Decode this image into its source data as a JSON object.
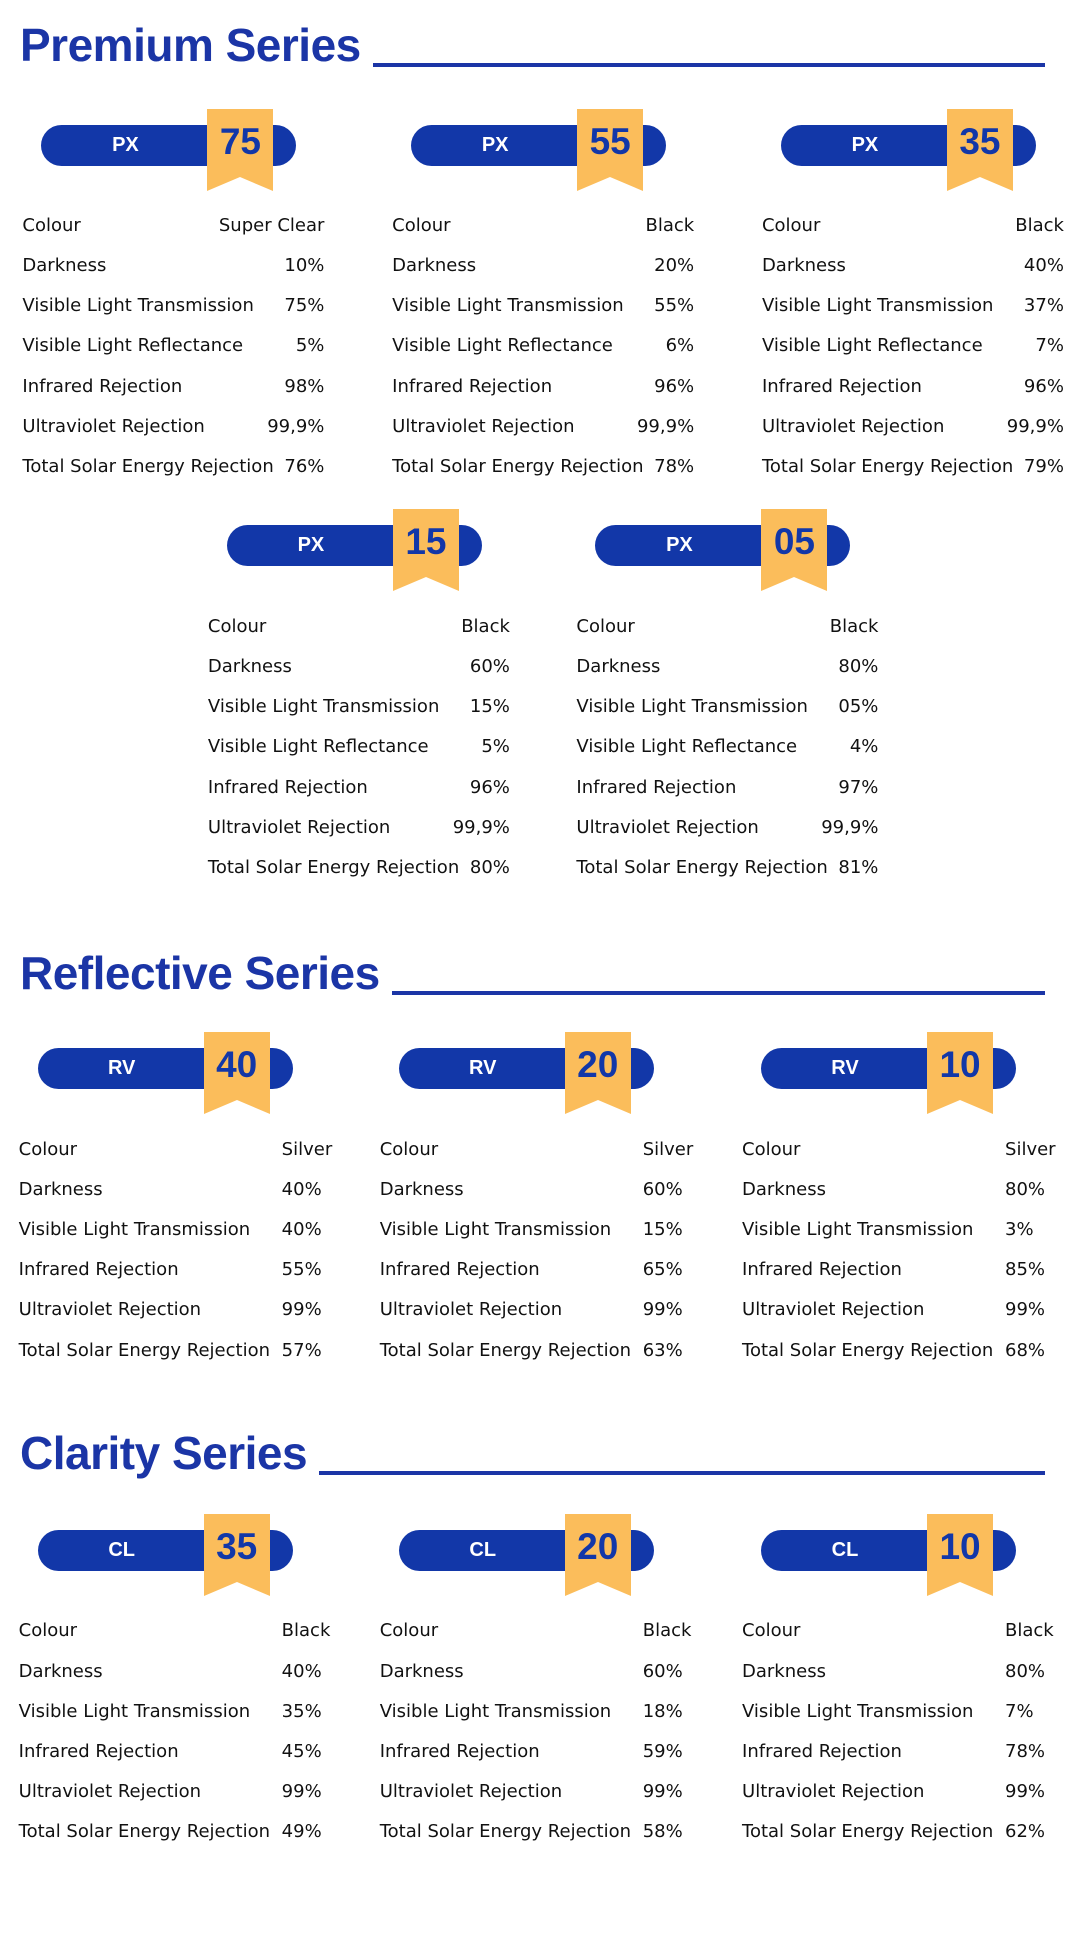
{
  "sections": [
    {
      "title": "Premium Series",
      "products": [
        {
          "code": "PX",
          "number": "75",
          "specs": [
            [
              "Colour",
              "Super Clear"
            ],
            [
              "Darkness",
              "10%"
            ],
            [
              "Visible Light Transmission",
              "75%"
            ],
            [
              "Visible Light Reflectance",
              "5%"
            ],
            [
              "Infrared Rejection",
              "98%"
            ],
            [
              "Ultraviolet Rejection",
              "99,9%"
            ],
            [
              "Total Solar Energy Rejection",
              "76%"
            ]
          ]
        },
        {
          "code": "PX",
          "number": "55",
          "specs": [
            [
              "Colour",
              "Black"
            ],
            [
              "Darkness",
              "20%"
            ],
            [
              "Visible Light Transmission",
              "55%"
            ],
            [
              "Visible Light Reflectance",
              "6%"
            ],
            [
              "Infrared Rejection",
              "96%"
            ],
            [
              "Ultraviolet Rejection",
              "99,9%"
            ],
            [
              "Total Solar Energy Rejection",
              "78%"
            ]
          ]
        },
        {
          "code": "PX",
          "number": "35",
          "specs": [
            [
              "Colour",
              "Black"
            ],
            [
              "Darkness",
              "40%"
            ],
            [
              "Visible Light Transmission",
              "37%"
            ],
            [
              "Visible Light Reflectance",
              "7%"
            ],
            [
              "Infrared Rejection",
              "96%"
            ],
            [
              "Ultraviolet Rejection",
              "99,9%"
            ],
            [
              "Total Solar Energy Rejection",
              "79%"
            ]
          ]
        },
        {
          "code": "PX",
          "number": "15",
          "specs": [
            [
              "Colour",
              "Black"
            ],
            [
              "Darkness",
              "60%"
            ],
            [
              "Visible Light Transmission",
              "15%"
            ],
            [
              "Visible Light Reflectance",
              "5%"
            ],
            [
              "Infrared Rejection",
              "96%"
            ],
            [
              "Ultraviolet Rejection",
              "99,9%"
            ],
            [
              "Total Solar Energy Rejection",
              "80%"
            ]
          ]
        },
        {
          "code": "PX",
          "number": "05",
          "specs": [
            [
              "Colour",
              "Black"
            ],
            [
              "Darkness",
              "80%"
            ],
            [
              "Visible Light Transmission",
              "05%"
            ],
            [
              "Visible Light Reflectance",
              "4%"
            ],
            [
              "Infrared Rejection",
              "97%"
            ],
            [
              "Ultraviolet Rejection",
              "99,9%"
            ],
            [
              "Total Solar Energy Rejection",
              "81%"
            ]
          ]
        }
      ]
    },
    {
      "title": "Reflective Series",
      "products": [
        {
          "code": "RV",
          "number": "40",
          "specs": [
            [
              "Colour",
              "Silver"
            ],
            [
              "Darkness",
              "40%"
            ],
            [
              "Visible Light Transmission",
              "40%"
            ],
            [
              "Infrared Rejection",
              "55%"
            ],
            [
              "Ultraviolet Rejection",
              "99%"
            ],
            [
              "Total Solar Energy Rejection",
              "57%"
            ]
          ]
        },
        {
          "code": "RV",
          "number": "20",
          "specs": [
            [
              "Colour",
              "Silver"
            ],
            [
              "Darkness",
              "60%"
            ],
            [
              "Visible Light Transmission",
              "15%"
            ],
            [
              "Infrared Rejection",
              "65%"
            ],
            [
              "Ultraviolet Rejection",
              "99%"
            ],
            [
              "Total Solar Energy Rejection",
              "63%"
            ]
          ]
        },
        {
          "code": "RV",
          "number": "10",
          "specs": [
            [
              "Colour",
              "Silver"
            ],
            [
              "Darkness",
              "80%"
            ],
            [
              "Visible Light Transmission",
              "3%"
            ],
            [
              "Infrared Rejection",
              "85%"
            ],
            [
              "Ultraviolet Rejection",
              "99%"
            ],
            [
              "Total Solar Energy Rejection",
              "68%"
            ]
          ]
        }
      ]
    },
    {
      "title": "Clarity Series",
      "products": [
        {
          "code": "CL",
          "number": "35",
          "specs": [
            [
              "Colour",
              "Black"
            ],
            [
              "Darkness",
              "40%"
            ],
            [
              "Visible Light Transmission",
              "35%"
            ],
            [
              "Infrared Rejection",
              "45%"
            ],
            [
              "Ultraviolet Rejection",
              "99%"
            ],
            [
              "Total Solar Energy Rejection",
              "49%"
            ]
          ]
        },
        {
          "code": "CL",
          "number": "20",
          "specs": [
            [
              "Colour",
              "Black"
            ],
            [
              "Darkness",
              "60%"
            ],
            [
              "Visible Light Transmission",
              "18%"
            ],
            [
              "Infrared Rejection",
              "59%"
            ],
            [
              "Ultraviolet Rejection",
              "99%"
            ],
            [
              "Total Solar Energy Rejection",
              "58%"
            ]
          ]
        },
        {
          "code": "CL",
          "number": "10",
          "specs": [
            [
              "Colour",
              "Black"
            ],
            [
              "Darkness",
              "80%"
            ],
            [
              "Visible Light Transmission",
              "7%"
            ],
            [
              "Infrared Rejection",
              "78%"
            ],
            [
              "Ultraviolet Rejection",
              "99%"
            ],
            [
              "Total Solar Energy Rejection",
              "62%"
            ]
          ]
        }
      ]
    }
  ]
}
